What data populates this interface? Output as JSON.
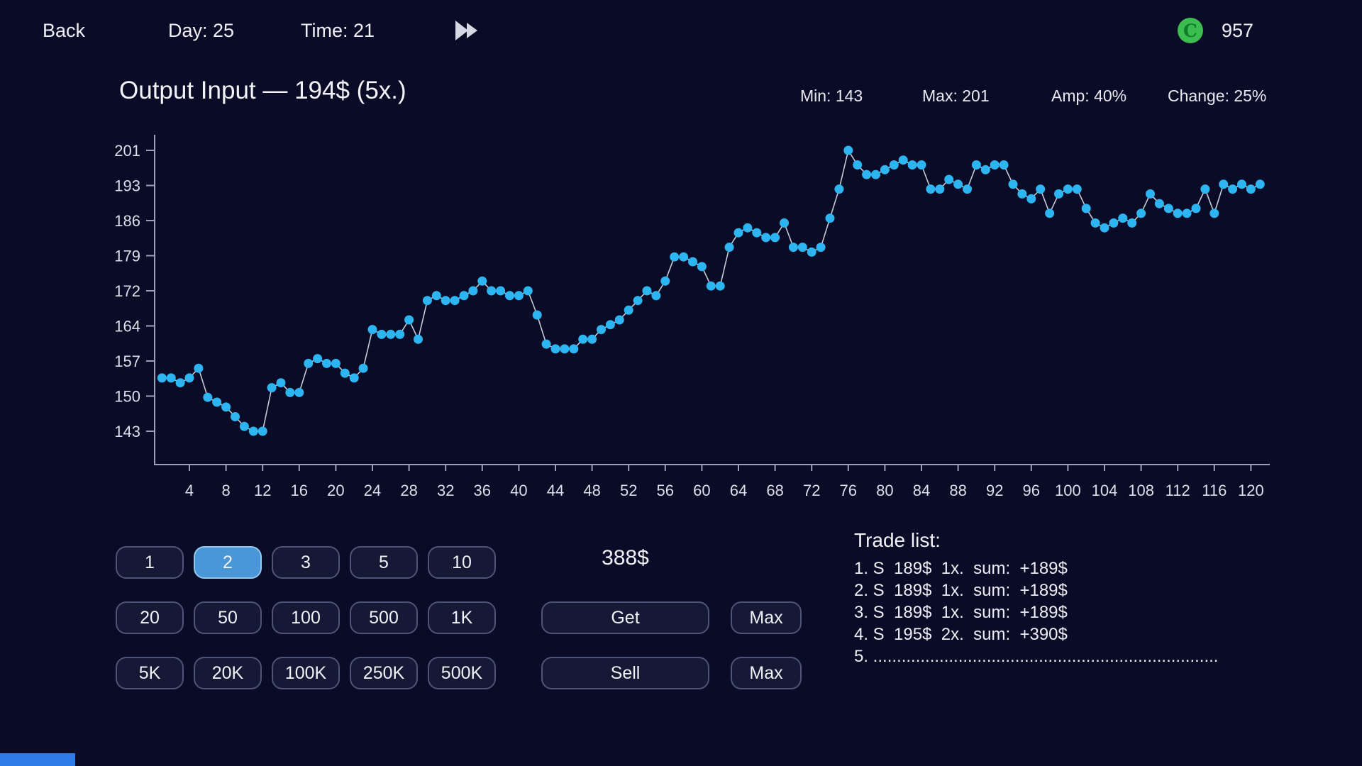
{
  "topbar": {
    "back_label": "Back",
    "day_label": "Day: 25",
    "time_label": "Time: 21",
    "coin_symbol": "C",
    "balance": "957"
  },
  "chart_header": {
    "title": "Output Input — 194$ (5x.)",
    "min": "Min: 143",
    "max": "Max: 201",
    "amp": "Amp: 40%",
    "change": "Change: 25%"
  },
  "chart_data": {
    "type": "line",
    "title": "Output Input — 194$ (5x.)",
    "x_start": 1,
    "x_step": 1,
    "values": [
      154,
      154,
      153,
      154,
      156,
      150,
      149,
      148,
      146,
      144,
      143,
      143,
      152,
      153,
      151,
      151,
      157,
      158,
      157,
      157,
      155,
      154,
      156,
      164,
      163,
      163,
      163,
      166,
      162,
      170,
      171,
      170,
      170,
      171,
      172,
      174,
      172,
      172,
      171,
      171,
      172,
      167,
      161,
      160,
      160,
      160,
      162,
      162,
      164,
      165,
      166,
      168,
      170,
      172,
      171,
      174,
      179,
      179,
      178,
      177,
      173,
      173,
      181,
      184,
      185,
      184,
      183,
      183,
      186,
      181,
      181,
      180,
      181,
      187,
      193,
      201,
      198,
      196,
      196,
      197,
      198,
      199,
      198,
      198,
      193,
      193,
      195,
      194,
      193,
      198,
      197,
      198,
      198,
      194,
      192,
      191,
      193,
      188,
      192,
      193,
      193,
      189,
      186,
      185,
      186,
      187,
      186,
      188,
      192,
      190,
      189,
      188,
      188,
      189,
      193,
      188,
      194,
      193,
      194,
      193,
      194
    ],
    "x_tick_labels": [
      4,
      8,
      12,
      16,
      20,
      24,
      28,
      32,
      36,
      40,
      44,
      48,
      52,
      56,
      60,
      64,
      68,
      72,
      76,
      80,
      84,
      88,
      92,
      96,
      100,
      104,
      108,
      112,
      116,
      120
    ],
    "y_tick_labels": [
      201,
      193,
      186,
      179,
      172,
      164,
      157,
      150,
      143
    ],
    "ylim": [
      143,
      201
    ],
    "xlim": [
      1,
      121
    ],
    "grid": false,
    "legend": false,
    "line_color": "#c7cad6",
    "point_color": "#2db5f2",
    "axis_color": "#9aa0b6",
    "stats": {
      "min": 143,
      "max": 201,
      "amp_pct": 40,
      "change_pct": 25,
      "current_price": 194,
      "multiplier": "5x"
    }
  },
  "amount_buttons": {
    "rows": [
      [
        "1",
        "2",
        "3",
        "5",
        "10"
      ],
      [
        "20",
        "50",
        "100",
        "500",
        "1K"
      ],
      [
        "5K",
        "20K",
        "100K",
        "250K",
        "500K"
      ]
    ],
    "selected": "2"
  },
  "trade_panel": {
    "price": "388$",
    "get_label": "Get",
    "sell_label": "Sell",
    "max_label": "Max"
  },
  "trade_list": {
    "title": "Trade list:",
    "entries": [
      "1. S  189$  1x.  sum:  +189$",
      "2. S  189$  1x.  sum:  +189$",
      "3. S  189$  1x.  sum:  +189$",
      "4. S  195$  2x.  sum:  +390$",
      "5. .........................................................................................."
    ]
  },
  "colors": {
    "background": "#0a0b26",
    "text": "#eef0f6",
    "selected_button": "#4a97d8",
    "button_border": "#4e5476",
    "point_blue": "#2db5f2",
    "coin_green": "#3cbd4f",
    "bottom_bar_blue": "#2e7ce6"
  }
}
